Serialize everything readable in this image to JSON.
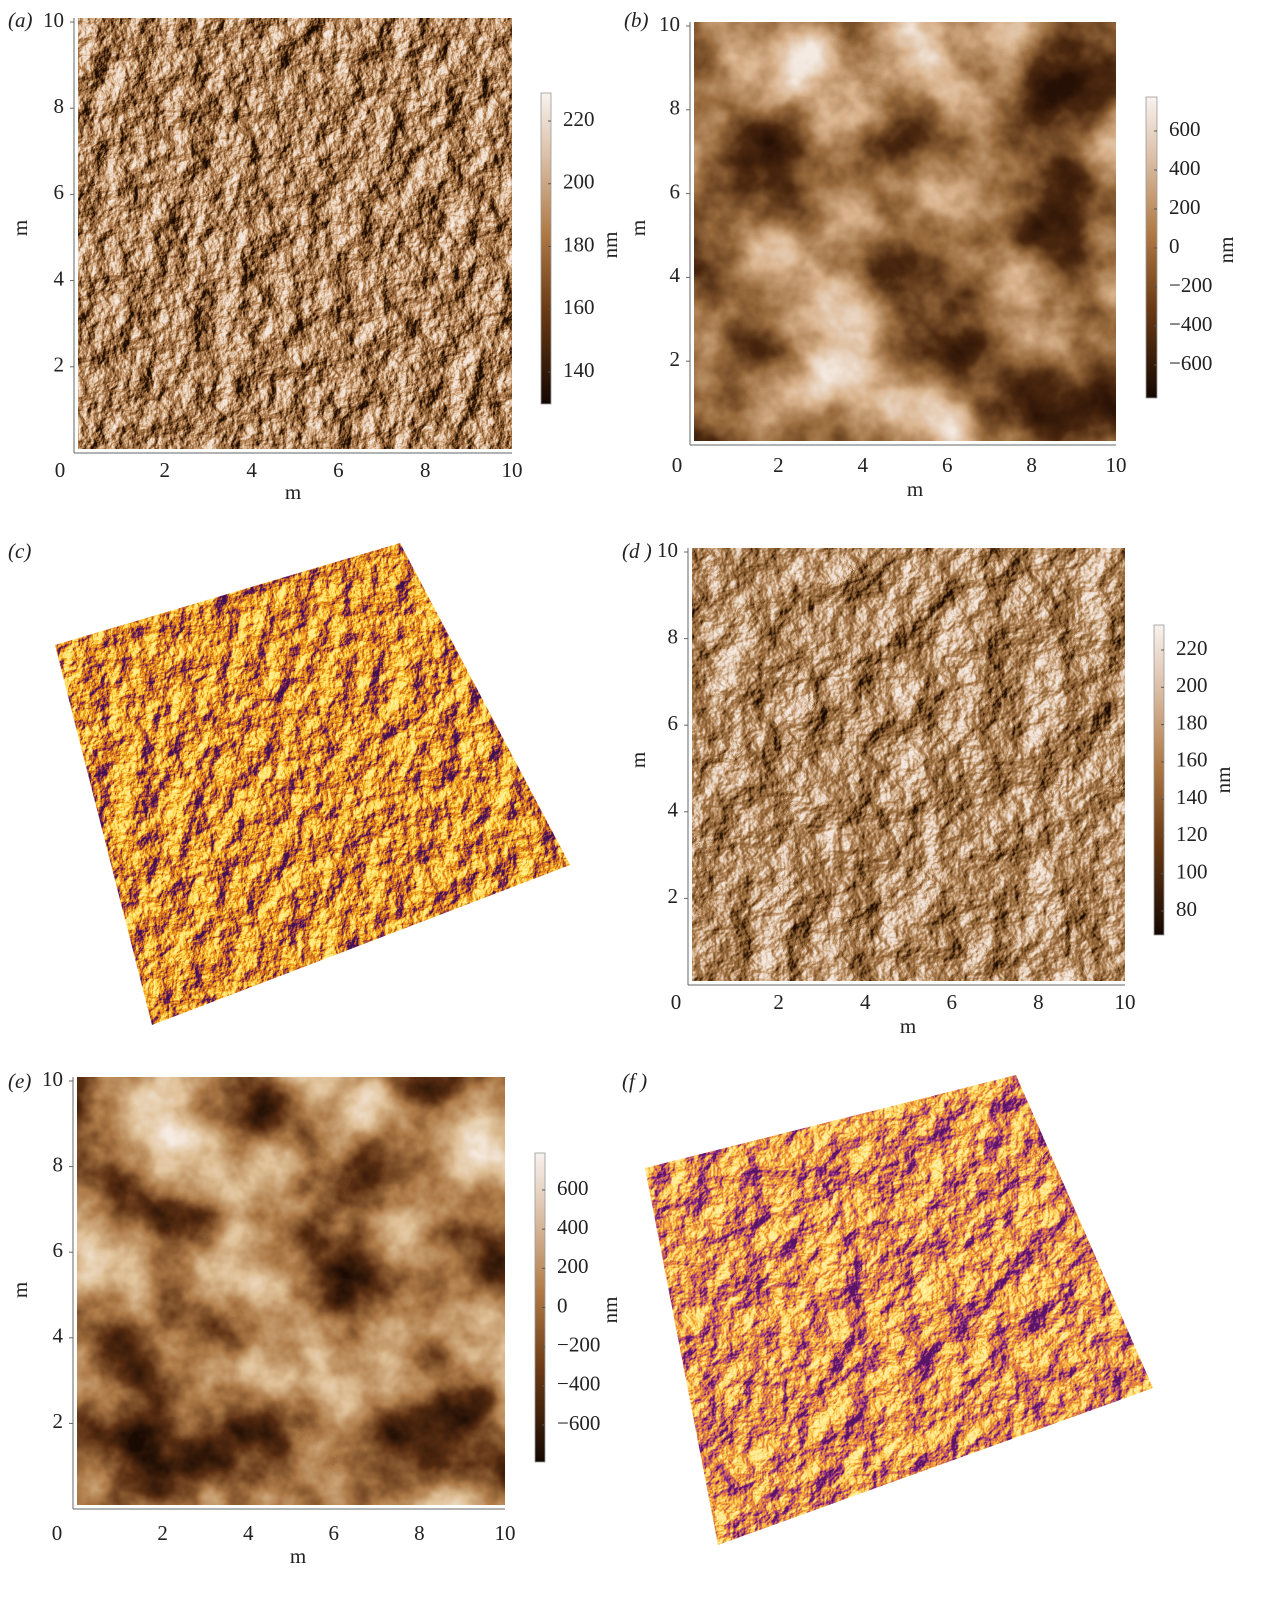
{
  "panels": [
    {
      "label": "(a)",
      "x_ticks": [
        "0",
        "2",
        "4",
        "6",
        "8",
        "10"
      ],
      "y_ticks": [
        "10",
        "8",
        "6",
        "4",
        "2"
      ],
      "x_label": "m",
      "y_label": "m",
      "colorbar_ticks": [
        "220",
        "200",
        "180",
        "160",
        "140"
      ],
      "colorbar_label": "nm"
    },
    {
      "label": "(b)",
      "x_ticks": [
        "0",
        "2",
        "4",
        "6",
        "8",
        "10"
      ],
      "y_ticks": [
        "10",
        "8",
        "6",
        "4",
        "2"
      ],
      "x_label": "m",
      "y_label": "m",
      "colorbar_ticks": [
        "600",
        "400",
        "200",
        "0",
        "−200",
        "−400",
        "−600"
      ],
      "colorbar_label": "nm"
    },
    {
      "label": "(c)"
    },
    {
      "label": "(d )",
      "x_ticks": [
        "0",
        "2",
        "4",
        "6",
        "8",
        "10"
      ],
      "y_ticks": [
        "10",
        "8",
        "6",
        "4",
        "2"
      ],
      "x_label": "m",
      "y_label": "m",
      "colorbar_ticks": [
        "220",
        "200",
        "180",
        "160",
        "140",
        "120",
        "100",
        "80"
      ],
      "colorbar_label": "nm"
    },
    {
      "label": "(e)",
      "x_ticks": [
        "0",
        "2",
        "4",
        "6",
        "8",
        "10"
      ],
      "y_ticks": [
        "10",
        "8",
        "6",
        "4",
        "2"
      ],
      "x_label": "m",
      "y_label": "m",
      "colorbar_ticks": [
        "600",
        "400",
        "200",
        "0",
        "−200",
        "−400",
        "−600"
      ],
      "colorbar_label": "nm"
    },
    {
      "label": "(f )"
    }
  ]
}
